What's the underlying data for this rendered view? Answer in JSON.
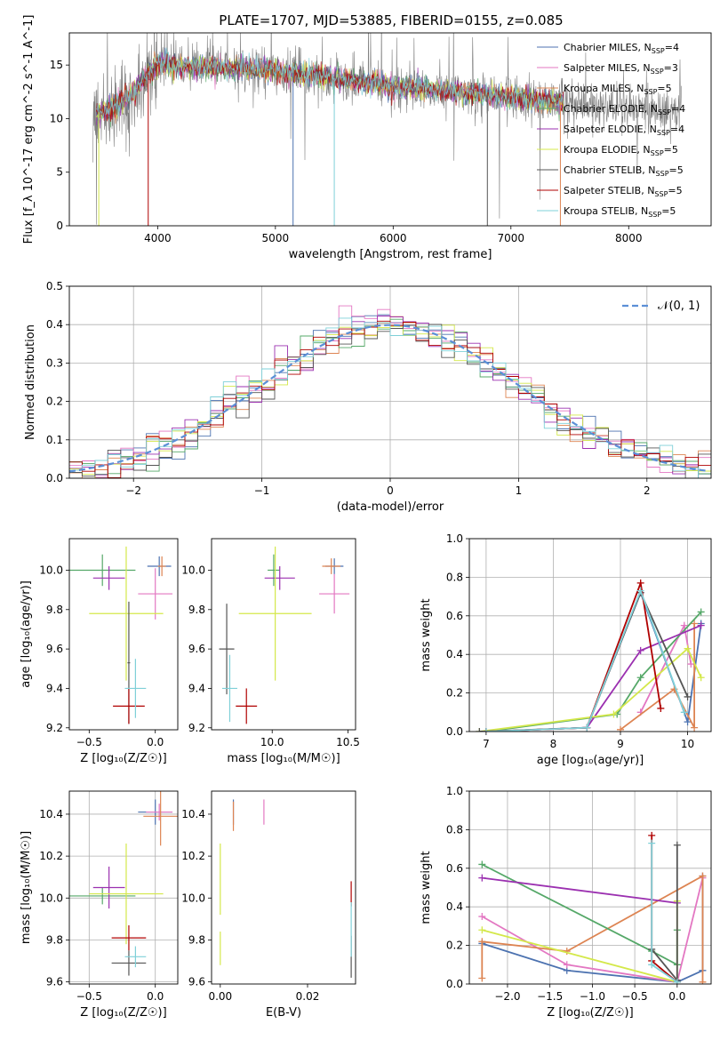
{
  "figure_title": "PLATE=1707, MJD=53885, FIBERID=0155, z=0.085",
  "legend": [
    {
      "text": "Chabrier MILES, N",
      "sub": "SSP",
      "tail": "=4",
      "color": "#4c72b0"
    },
    {
      "text": "Salpeter MILES, N",
      "sub": "SSP",
      "tail": "=3",
      "color": "#e377c2"
    },
    {
      "text": "Kroupa MILES, N",
      "sub": "SSP",
      "tail": "=5",
      "color": "#dd8452"
    },
    {
      "text": "Chabrier ELODIE, N",
      "sub": "SSP",
      "tail": "=4",
      "color": "#55a868"
    },
    {
      "text": "Salpeter ELODIE, N",
      "sub": "SSP",
      "tail": "=4",
      "color": "#9b30b0"
    },
    {
      "text": "Kroupa ELODIE, N",
      "sub": "SSP",
      "tail": "=5",
      "color": "#d4e84a"
    },
    {
      "text": "Chabrier STELIB, N",
      "sub": "SSP",
      "tail": "=5",
      "color": "#555555"
    },
    {
      "text": "Salpeter STELIB, N",
      "sub": "SSP",
      "tail": "=5",
      "color": "#b00000"
    },
    {
      "text": "Kroupa STELIB, N",
      "sub": "SSP",
      "tail": "=5",
      "color": "#7fd0d8"
    }
  ],
  "chart_data": [
    {
      "id": "spectrum",
      "type": "line",
      "xlabel": "wavelength [Angstrom, rest frame]",
      "ylabel": "Flux [f_λ 10^-17 erg cm^-2 s^-1 A^-1]",
      "xlim": [
        3250,
        8700
      ],
      "ylim": [
        0,
        18
      ],
      "xticks": [
        4000,
        5000,
        6000,
        7000,
        8000
      ],
      "yticks": [
        0,
        5,
        10,
        15
      ],
      "grid": false,
      "legend_position": "top-right",
      "data_color": "#808080",
      "model_color": "#7fd0d8",
      "continuum": [
        [
          3450,
          10.5
        ],
        [
          3600,
          10.8
        ],
        [
          3800,
          12.5
        ],
        [
          4000,
          15.2
        ],
        [
          4200,
          14.8
        ],
        [
          4500,
          14.8
        ],
        [
          5000,
          14.5
        ],
        [
          5500,
          13.8
        ],
        [
          6000,
          13.0
        ],
        [
          6500,
          12.5
        ],
        [
          7000,
          12.0
        ],
        [
          7400,
          11.6
        ],
        [
          8000,
          11.0
        ],
        [
          8400,
          10.8
        ]
      ],
      "data_range": [
        3450,
        8450
      ],
      "model_range": [
        3480,
        7450
      ]
    },
    {
      "id": "residuals",
      "type": "histogram",
      "xlabel": "(data-model)/error",
      "ylabel": "Normed distribution",
      "xlim": [
        -2.5,
        2.5
      ],
      "ylim": [
        0,
        0.5
      ],
      "xticks": [
        -2,
        -1,
        0,
        1,
        2
      ],
      "yticks": [
        0.0,
        0.1,
        0.2,
        0.3,
        0.4,
        0.5
      ],
      "grid": true,
      "legend_position": "top-right",
      "normal_curve": {
        "label": "𝒩(0, 1)",
        "mean": 0,
        "sigma": 1,
        "color": "#5b8fd6"
      },
      "bin_width": 0.1
    },
    {
      "id": "Z_age",
      "type": "errorbar",
      "xlabel": "Z [log₁₀(Z/Z☉)]",
      "ylabel": "age  [log₁₀(age/yr)]",
      "xlim": [
        -0.65,
        0.17
      ],
      "ylim": [
        9.19,
        10.16
      ],
      "xticks": [
        -0.5,
        0.0
      ],
      "yticks": [
        9.2,
        9.4,
        9.6,
        9.8,
        10.0
      ],
      "grid": false,
      "points": [
        {
          "series": 0,
          "x": 0.03,
          "xerr": 0.09,
          "y": 10.02,
          "yerr": 0.05
        },
        {
          "series": 1,
          "x": 0.0,
          "xerr": 0.13,
          "y": 9.88,
          "yerr": 0.13
        },
        {
          "series": 2,
          "x": 0.05,
          "xerr": 0.03,
          "y": 10.02,
          "yerr": 0.05
        },
        {
          "series": 3,
          "x": -0.4,
          "xerr": 0.25,
          "y": 10.0,
          "yerr": 0.08
        },
        {
          "series": 4,
          "x": -0.35,
          "xerr": 0.12,
          "y": 9.96,
          "yerr": 0.06
        },
        {
          "series": 5,
          "x": -0.22,
          "xerr": 0.28,
          "y": 9.78,
          "yerr": 0.34
        },
        {
          "series": 6,
          "x": -0.2,
          "xerr": 0.01,
          "y": 9.53,
          "yerr": 0.31
        },
        {
          "series": 7,
          "x": -0.2,
          "xerr": 0.12,
          "y": 9.31,
          "yerr": 0.09
        },
        {
          "series": 8,
          "x": -0.15,
          "xerr": 0.08,
          "y": 9.4,
          "yerr": 0.15
        }
      ]
    },
    {
      "id": "mass_age",
      "type": "errorbar",
      "xlabel": "mass [log₁₀(M/M☉)]",
      "ylabel": "",
      "xlim": [
        9.6,
        10.55
      ],
      "ylim": [
        9.19,
        10.16
      ],
      "xticks": [
        9.5,
        10.0,
        10.5
      ],
      "yticks": [
        9.2,
        9.4,
        9.6,
        9.8,
        10.0
      ],
      "grid": false,
      "points": [
        {
          "series": 0,
          "x": 10.41,
          "xerr": 0.06,
          "y": 10.02,
          "yerr": 0.04
        },
        {
          "series": 1,
          "x": 10.41,
          "xerr": 0.1,
          "y": 9.88,
          "yerr": 0.1
        },
        {
          "series": 2,
          "x": 10.39,
          "xerr": 0.06,
          "y": 10.02,
          "yerr": 0.04
        },
        {
          "series": 3,
          "x": 10.01,
          "xerr": 0.04,
          "y": 10.0,
          "yerr": 0.08
        },
        {
          "series": 4,
          "x": 10.05,
          "xerr": 0.1,
          "y": 9.96,
          "yerr": 0.06
        },
        {
          "series": 5,
          "x": 10.02,
          "xerr": 0.24,
          "y": 9.78,
          "yerr": 0.34
        },
        {
          "series": 6,
          "x": 9.7,
          "xerr": 0.05,
          "y": 9.6,
          "yerr": 0.23
        },
        {
          "series": 7,
          "x": 9.83,
          "xerr": 0.07,
          "y": 9.31,
          "yerr": 0.09
        },
        {
          "series": 8,
          "x": 9.72,
          "xerr": 0.05,
          "y": 9.4,
          "yerr": 0.17
        }
      ]
    },
    {
      "id": "age_weight",
      "type": "line",
      "xlabel": "age  [log₁₀(age/yr)]",
      "ylabel": "mass weight",
      "xlim": [
        6.75,
        10.35
      ],
      "ylim": [
        0,
        1
      ],
      "xticks": [
        7,
        8,
        9,
        10
      ],
      "yticks": [
        0.0,
        0.2,
        0.4,
        0.6,
        0.8,
        1.0
      ],
      "grid": true,
      "series": [
        {
          "series": 0,
          "x": [
            7.0,
            8.5,
            9.3,
            10.0,
            10.2
          ],
          "y": [
            0.0,
            0.02,
            0.72,
            0.05,
            0.56
          ]
        },
        {
          "series": 1,
          "x": [
            9.3,
            9.95,
            10.05
          ],
          "y": [
            0.1,
            0.55,
            0.35
          ]
        },
        {
          "series": 2,
          "x": [
            9.0,
            9.8,
            10.1,
            10.1
          ],
          "y": [
            0.01,
            0.22,
            0.02,
            0.56
          ]
        },
        {
          "series": 3,
          "x": [
            7.0,
            8.95,
            9.3,
            10.2
          ],
          "y": [
            0.0,
            0.09,
            0.28,
            0.62
          ]
        },
        {
          "series": 4,
          "x": [
            7.0,
            8.5,
            9.3,
            10.2
          ],
          "y": [
            0.0,
            0.02,
            0.42,
            0.55
          ]
        },
        {
          "series": 5,
          "x": [
            6.9,
            8.9,
            10.0,
            10.2
          ],
          "y": [
            0.0,
            0.09,
            0.43,
            0.28
          ]
        },
        {
          "series": 6,
          "x": [
            6.9,
            8.5,
            9.3,
            10.0
          ],
          "y": [
            0.0,
            0.02,
            0.72,
            0.18
          ]
        },
        {
          "series": 7,
          "x": [
            7.0,
            8.5,
            9.3,
            9.6
          ],
          "y": [
            0.0,
            0.02,
            0.77,
            0.12
          ]
        },
        {
          "series": 8,
          "x": [
            7.0,
            8.5,
            9.3,
            9.95
          ],
          "y": [
            0.0,
            0.02,
            0.73,
            0.1
          ]
        }
      ]
    },
    {
      "id": "Z_mass",
      "type": "errorbar",
      "xlabel": "Z [log₁₀(Z/Z☉)]",
      "ylabel": "mass [log₁₀(M/M☉)]",
      "xlim": [
        -0.65,
        0.17
      ],
      "ylim": [
        9.59,
        10.51
      ],
      "xticks": [
        -0.5,
        0.0
      ],
      "yticks": [
        9.6,
        9.8,
        10.0,
        10.2,
        10.4
      ],
      "grid": true,
      "points": [
        {
          "series": 0,
          "x": 0.0,
          "xerr": 0.13,
          "y": 10.41,
          "yerr": 0.06
        },
        {
          "series": 1,
          "x": 0.03,
          "xerr": 0.1,
          "y": 10.41,
          "yerr": 0.04
        },
        {
          "series": 2,
          "x": 0.04,
          "xerr": 0.13,
          "y": 10.39,
          "yerr": 0.14
        },
        {
          "series": 3,
          "x": -0.4,
          "xerr": 0.25,
          "y": 10.01,
          "yerr": 0.04
        },
        {
          "series": 4,
          "x": -0.35,
          "xerr": 0.12,
          "y": 10.05,
          "yerr": 0.1
        },
        {
          "series": 5,
          "x": -0.22,
          "xerr": 0.28,
          "y": 10.02,
          "yerr": 0.24
        },
        {
          "series": 6,
          "x": -0.2,
          "xerr": 0.13,
          "y": 9.69,
          "yerr": 0.06
        },
        {
          "series": 7,
          "x": -0.2,
          "xerr": 0.13,
          "y": 9.81,
          "yerr": 0.06
        },
        {
          "series": 8,
          "x": -0.15,
          "xerr": 0.08,
          "y": 9.72,
          "yerr": 0.05
        }
      ]
    },
    {
      "id": "ebv_mass",
      "type": "errorbar",
      "xlabel": "E(B-V)",
      "ylabel": "",
      "xlim": [
        -0.002,
        0.031
      ],
      "ylim": [
        9.59,
        10.51
      ],
      "xticks": [
        0.0,
        0.02
      ],
      "yticks": [
        9.6,
        9.8,
        10.0,
        10.2,
        10.4
      ],
      "grid": false,
      "points": [
        {
          "series": 0,
          "x": 0.003,
          "xerr": 0,
          "y": 10.41,
          "yerr": 0.06
        },
        {
          "series": 1,
          "x": 0.01,
          "xerr": 0,
          "y": 10.41,
          "yerr": 0.06
        },
        {
          "series": 2,
          "x": 0.003,
          "xerr": 0,
          "y": 10.39,
          "yerr": 0.07
        },
        {
          "series": 5,
          "x": 0.0,
          "xerr": 0,
          "y": 10.09,
          "yerr": 0.17
        },
        {
          "series": 5,
          "x": 0.0,
          "xerr": 0,
          "y": 9.76,
          "yerr": 0.08
        },
        {
          "series": 6,
          "x": 0.03,
          "xerr": 0,
          "y": 9.72,
          "yerr": 0.1
        },
        {
          "series": 7,
          "x": 0.03,
          "xerr": 0,
          "y": 10.02,
          "yerr": 0.06
        },
        {
          "series": 8,
          "x": 0.03,
          "xerr": 0,
          "y": 9.85,
          "yerr": 0.13
        }
      ]
    },
    {
      "id": "Z_weight",
      "type": "line",
      "xlabel": "Z [log₁₀(Z/Z☉)]",
      "ylabel": "mass weight",
      "xlim": [
        -2.45,
        0.4
      ],
      "ylim": [
        0,
        1
      ],
      "xticks": [
        -2.0,
        -1.5,
        -1.0,
        -0.5,
        0.0
      ],
      "yticks": [
        0.0,
        0.2,
        0.4,
        0.6,
        0.8,
        1.0
      ],
      "grid": true,
      "series": [
        {
          "series": 0,
          "x": [
            -2.3,
            -1.3,
            0.0,
            0.3,
            0.3
          ],
          "y": [
            0.21,
            0.07,
            0.01,
            0.07,
            0.56
          ]
        },
        {
          "series": 1,
          "x": [
            -2.3,
            -1.3,
            0.0,
            0.3
          ],
          "y": [
            0.35,
            0.1,
            0.01,
            0.55
          ]
        },
        {
          "series": 2,
          "x": [
            -2.3,
            -2.3,
            -1.3,
            0.3,
            0.3
          ],
          "y": [
            0.03,
            0.22,
            0.17,
            0.56,
            0.01
          ]
        },
        {
          "series": 3,
          "x": [
            -2.3,
            -0.3,
            0.0,
            0.0
          ],
          "y": [
            0.62,
            0.17,
            0.1,
            0.28
          ]
        },
        {
          "series": 4,
          "x": [
            -2.3,
            0.0
          ],
          "y": [
            0.55,
            0.42
          ]
        },
        {
          "series": 5,
          "x": [
            -2.3,
            0.0,
            0.0
          ],
          "y": [
            0.28,
            0.01,
            0.43
          ]
        },
        {
          "series": 6,
          "x": [
            -0.3,
            0.0,
            0.0
          ],
          "y": [
            0.18,
            0.02,
            0.72
          ]
        },
        {
          "series": 7,
          "x": [
            -0.3,
            -0.3,
            0.0
          ],
          "y": [
            0.77,
            0.12,
            0.01
          ]
        },
        {
          "series": 8,
          "x": [
            -0.3,
            -0.3,
            0.0
          ],
          "y": [
            0.73,
            0.1,
            0.01
          ]
        }
      ]
    }
  ]
}
